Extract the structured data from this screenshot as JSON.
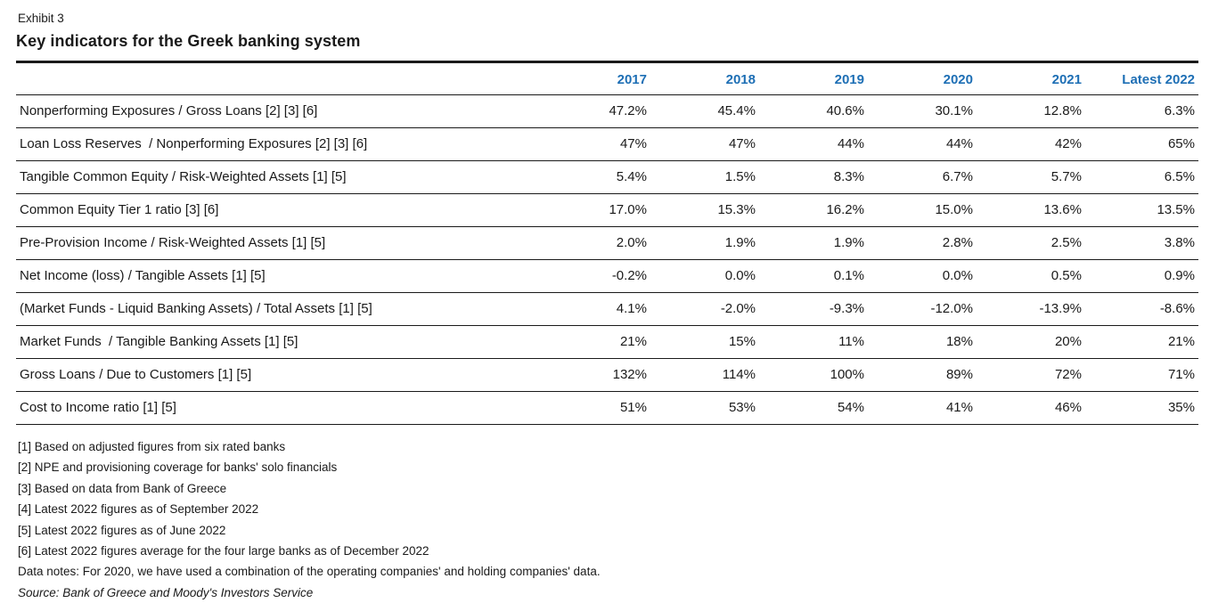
{
  "exhibit": {
    "label": "Exhibit 3",
    "title": "Key indicators for the Greek banking system"
  },
  "table": {
    "columns": [
      "2017",
      "2018",
      "2019",
      "2020",
      "2021",
      "Latest 2022"
    ],
    "rows": [
      {
        "label": "Nonperforming Exposures / Gross Loans [2] [3] [6]",
        "values": [
          "47.2%",
          "45.4%",
          "40.6%",
          "30.1%",
          "12.8%",
          "6.3%"
        ]
      },
      {
        "label": "Loan Loss Reserves  / Nonperforming Exposures [2] [3] [6]",
        "values": [
          "47%",
          "47%",
          "44%",
          "44%",
          "42%",
          "65%"
        ]
      },
      {
        "label": "Tangible Common Equity / Risk-Weighted Assets [1] [5]",
        "values": [
          "5.4%",
          "1.5%",
          "8.3%",
          "6.7%",
          "5.7%",
          "6.5%"
        ]
      },
      {
        "label": "Common Equity Tier 1 ratio [3] [6]",
        "values": [
          "17.0%",
          "15.3%",
          "16.2%",
          "15.0%",
          "13.6%",
          "13.5%"
        ]
      },
      {
        "label": "Pre-Provision Income / Risk-Weighted Assets [1] [5]",
        "values": [
          "2.0%",
          "1.9%",
          "1.9%",
          "2.8%",
          "2.5%",
          "3.8%"
        ]
      },
      {
        "label": "Net Income (loss) / Tangible Assets [1] [5]",
        "values": [
          "-0.2%",
          "0.0%",
          "0.1%",
          "0.0%",
          "0.5%",
          "0.9%"
        ]
      },
      {
        "label": "(Market Funds - Liquid Banking Assets) / Total Assets [1] [5]",
        "values": [
          "4.1%",
          "-2.0%",
          "-9.3%",
          "-12.0%",
          "-13.9%",
          "-8.6%"
        ]
      },
      {
        "label": "Market Funds  / Tangible Banking Assets [1] [5]",
        "values": [
          "21%",
          "15%",
          "11%",
          "18%",
          "20%",
          "21%"
        ]
      },
      {
        "label": "Gross Loans / Due to Customers [1] [5]",
        "values": [
          "132%",
          "114%",
          "100%",
          "89%",
          "72%",
          "71%"
        ]
      },
      {
        "label": "Cost to Income ratio [1] [5]",
        "values": [
          "51%",
          "53%",
          "54%",
          "41%",
          "46%",
          "35%"
        ]
      }
    ]
  },
  "footnotes": [
    "[1] Based on adjusted figures from six rated banks",
    "[2] NPE and provisioning coverage for banks' solo financials",
    "[3] Based on data from Bank of Greece",
    "[4] Latest 2022 figures as of September 2022",
    "[5] Latest 2022 figures as of June 2022",
    "[6] Latest 2022 figures average for the four large banks as of December 2022"
  ],
  "data_notes": "Data notes: For 2020, we have used a combination of the operating companies' and holding companies' data.",
  "source": "Source: Bank of Greece and Moody's Investors Service",
  "colors": {
    "header_blue": "#1e6fb5",
    "text": "#1a1a1a",
    "rule": "#1a1a1a",
    "background": "#ffffff"
  },
  "chart_data": {
    "type": "table",
    "title": "Key indicators for the Greek banking system",
    "categories": [
      "2017",
      "2018",
      "2019",
      "2020",
      "2021",
      "Latest 2022"
    ],
    "units": "%",
    "series": [
      {
        "name": "Nonperforming Exposures / Gross Loans",
        "values": [
          47.2,
          45.4,
          40.6,
          30.1,
          12.8,
          6.3
        ]
      },
      {
        "name": "Loan Loss Reserves / Nonperforming Exposures",
        "values": [
          47,
          47,
          44,
          44,
          42,
          65
        ]
      },
      {
        "name": "Tangible Common Equity / Risk-Weighted Assets",
        "values": [
          5.4,
          1.5,
          8.3,
          6.7,
          5.7,
          6.5
        ]
      },
      {
        "name": "Common Equity Tier 1 ratio",
        "values": [
          17.0,
          15.3,
          16.2,
          15.0,
          13.6,
          13.5
        ]
      },
      {
        "name": "Pre-Provision Income / Risk-Weighted Assets",
        "values": [
          2.0,
          1.9,
          1.9,
          2.8,
          2.5,
          3.8
        ]
      },
      {
        "name": "Net Income (loss) / Tangible Assets",
        "values": [
          -0.2,
          0.0,
          0.1,
          0.0,
          0.5,
          0.9
        ]
      },
      {
        "name": "(Market Funds - Liquid Banking Assets) / Total Assets",
        "values": [
          4.1,
          -2.0,
          -9.3,
          -12.0,
          -13.9,
          -8.6
        ]
      },
      {
        "name": "Market Funds / Tangible Banking Assets",
        "values": [
          21,
          15,
          11,
          18,
          20,
          21
        ]
      },
      {
        "name": "Gross Loans / Due to Customers",
        "values": [
          132,
          114,
          100,
          89,
          72,
          71
        ]
      },
      {
        "name": "Cost to Income ratio",
        "values": [
          51,
          53,
          54,
          41,
          46,
          35
        ]
      }
    ],
    "legend_position": "none",
    "grid": "horizontal-rules"
  }
}
